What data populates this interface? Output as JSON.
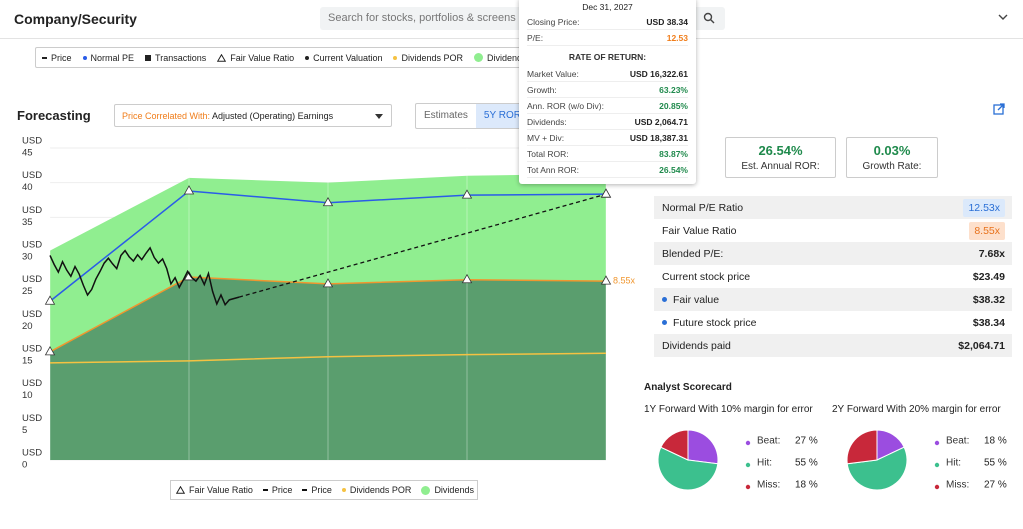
{
  "header": {
    "title": "Company/Security",
    "search_placeholder": "Search for stocks, portfolios & screens"
  },
  "top_legend": [
    {
      "name": "Price",
      "symbol": "dash",
      "color": "#222222"
    },
    {
      "name": "Normal PE",
      "symbol": "dot",
      "color": "#2a5ce8"
    },
    {
      "name": "Transactions",
      "symbol": "square",
      "color": "#222222"
    },
    {
      "name": "Fair Value Ratio",
      "symbol": "triangle",
      "color": "#222222"
    },
    {
      "name": "Current Valuation",
      "symbol": "dot",
      "color": "#222222"
    },
    {
      "name": "Dividends POR",
      "symbol": "dot",
      "color": "#f5c242"
    },
    {
      "name": "Dividends",
      "symbol": "bigdot",
      "color": "#90ee90"
    }
  ],
  "forecasting": {
    "title": "Forecasting",
    "correlation_label": "Price Correlated With:",
    "correlation_value": "Adjusted (Operating) Earnings",
    "tabs": [
      "Estimates",
      "5Y ROR"
    ]
  },
  "chart_data": [
    {
      "type": "line",
      "yunit": "USD",
      "ylim": [
        0,
        45
      ],
      "yticks": [
        0,
        5,
        10,
        15,
        20,
        25,
        30,
        35,
        40,
        45
      ],
      "xlim": [
        0,
        4
      ],
      "vertical_grid": true,
      "series": [
        {
          "name": "Dividends",
          "style": "area",
          "color": "#90ee90",
          "symbol": "bigdot",
          "x": [
            0,
            1,
            2,
            3,
            4
          ],
          "values": [
            30.2,
            40.7,
            40.0,
            41.0,
            41.3
          ]
        },
        {
          "name": "Fair Value Ratio",
          "style": "area-line",
          "color": "#f0962e",
          "area_color": "#5a9e6e",
          "symbol": "triangle",
          "markers": true,
          "end_label": "8.55x",
          "x": [
            0,
            1,
            2,
            3,
            4
          ],
          "values": [
            15.6,
            26.4,
            25.4,
            26.0,
            25.8
          ]
        },
        {
          "name": "Dividends POR",
          "style": "line",
          "color": "#f5c242",
          "symbol": "dot",
          "x": [
            0,
            1,
            2,
            3,
            4
          ],
          "values": [
            14.0,
            14.3,
            14.9,
            15.2,
            15.4
          ]
        },
        {
          "name": "Normal PE",
          "style": "line",
          "color": "#2a5ce8",
          "markers": true,
          "in_legend": false,
          "x": [
            0,
            1,
            2,
            3,
            4
          ],
          "values": [
            22.9,
            38.8,
            37.1,
            38.2,
            38.34
          ]
        },
        {
          "name": "Price",
          "style": "line",
          "color": "#111111",
          "symbol": "dash",
          "x": [
            0,
            0.03,
            0.06,
            0.09,
            0.12,
            0.15,
            0.18,
            0.21,
            0.24,
            0.27,
            0.3,
            0.33,
            0.36,
            0.39,
            0.42,
            0.45,
            0.48,
            0.51,
            0.54,
            0.57,
            0.6,
            0.63,
            0.66,
            0.69,
            0.72,
            0.75,
            0.78,
            0.81,
            0.84,
            0.87,
            0.9,
            0.93,
            0.96,
            0.99,
            1.02,
            1.05,
            1.08,
            1.11,
            1.14,
            1.17,
            1.2,
            1.23,
            1.26,
            1.29,
            1.36
          ],
          "values": [
            29.5,
            28.2,
            27.1,
            28.6,
            27.4,
            26.5,
            27.9,
            26.8,
            25.2,
            23.8,
            24.6,
            26.1,
            27.2,
            28.4,
            29.1,
            28.3,
            27.6,
            29.5,
            30.2,
            29.3,
            28.7,
            29.6,
            28.9,
            29.8,
            30.6,
            29.2,
            28.4,
            29.0,
            27.6,
            25.4,
            26.3,
            24.9,
            26.0,
            27.2,
            26.3,
            25.8,
            26.6,
            25.3,
            26.9,
            24.3,
            22.5,
            23.8,
            22.4,
            23.1,
            23.49
          ]
        },
        {
          "name": "Price",
          "style": "dashed",
          "color": "#111111",
          "symbol": "dash",
          "markers": "end",
          "x": [
            1.36,
            4
          ],
          "values": [
            23.49,
            38.34
          ]
        }
      ],
      "legend_order": [
        1,
        4,
        5,
        2,
        0
      ]
    },
    {
      "type": "pie",
      "title": "1Y Forward With 10% margin for error",
      "categories": [
        "Beat:",
        "Hit:",
        "Miss:"
      ],
      "values": [
        27,
        55,
        18
      ],
      "value_labels": [
        "27 %",
        "55 %",
        "18 %"
      ],
      "colors": [
        "#9b4de0",
        "#3cc08e",
        "#c8283a"
      ]
    },
    {
      "type": "pie",
      "title": "2Y Forward With 20% margin for error",
      "categories": [
        "Beat:",
        "Hit:",
        "Miss:"
      ],
      "values": [
        18,
        55,
        27
      ],
      "value_labels": [
        "18 %",
        "55 %",
        "27 %"
      ],
      "colors": [
        "#9b4de0",
        "#3cc08e",
        "#c8283a"
      ]
    }
  ],
  "tooltip": {
    "date": "Dec 31, 2027",
    "section": "RATE OF RETURN:",
    "top_rows": [
      {
        "label": "Closing Price:",
        "value": "USD 38.34",
        "color": "#222222"
      },
      {
        "label": "P/E:",
        "value": "12.53",
        "color": "#f07d1a"
      }
    ],
    "rows": [
      {
        "label": "Market Value:",
        "value": "USD 16,322.61",
        "color": "#222222"
      },
      {
        "label": "Growth:",
        "value": "63.23%",
        "color": "#1f8a4c"
      },
      {
        "label": "Ann. ROR (w/o Div):",
        "value": "20.85%",
        "color": "#1f8a4c"
      },
      {
        "label": "Dividends:",
        "value": "USD 2,064.71",
        "color": "#222222"
      },
      {
        "label": "MV + Div:",
        "value": "USD 18,387.31",
        "color": "#222222"
      },
      {
        "label": "Total ROR:",
        "value": "83.87%",
        "color": "#1f8a4c"
      },
      {
        "label": "Tot Ann ROR:",
        "value": "26.54%",
        "color": "#1f8a4c"
      }
    ]
  },
  "summary_cards": [
    {
      "value": "26.54%",
      "label": "Est. Annual ROR:"
    },
    {
      "value": "0.03%",
      "label": "Growth Rate:"
    }
  ],
  "metrics": [
    {
      "label": "Normal P/E Ratio",
      "value": "12.53x",
      "badge": "#dbe9fb",
      "color": "#2a6fd6"
    },
    {
      "label": "Fair Value Ratio",
      "value": "8.55x",
      "badge": "#fde0cc",
      "color": "#e8721c"
    },
    {
      "label": "Blended P/E:",
      "value": "7.68x",
      "color": "#222222"
    },
    {
      "label": "Current stock price",
      "value": "$23.49",
      "color": "#222222"
    },
    {
      "label": "Fair value",
      "value": "$38.32",
      "color": "#222222",
      "dot": "#2a6fd6"
    },
    {
      "label": "Future stock price",
      "value": "$38.34",
      "color": "#222222",
      "dot": "#2a6fd6"
    },
    {
      "label": "Dividends paid",
      "value": "$2,064.71",
      "color": "#222222"
    }
  ],
  "scorecard": {
    "title": "Analyst Scorecard"
  }
}
